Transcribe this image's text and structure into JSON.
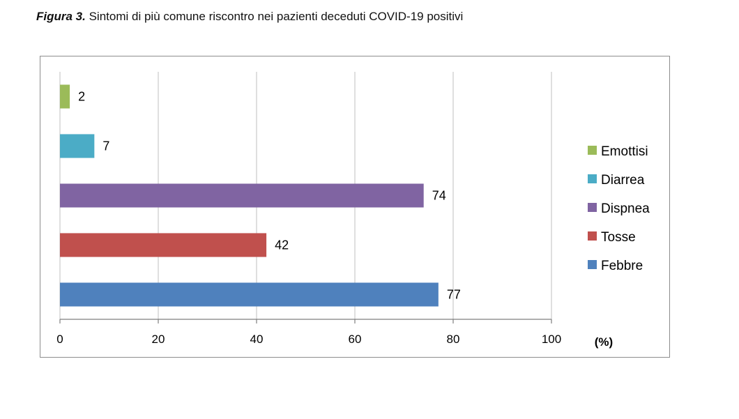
{
  "caption": {
    "label": "Figura 3.",
    "text": "Sintomi di più comune riscontro nei pazienti deceduti COVID-19 positivi"
  },
  "chart_data": {
    "type": "bar",
    "orientation": "horizontal",
    "title": "Sintomi di più comune riscontro nei pazienti deceduti COVID-19 positivi",
    "xlabel": "(%)",
    "ylabel": "",
    "xlim": [
      0,
      100
    ],
    "xticks": [
      0,
      20,
      40,
      60,
      80,
      100
    ],
    "grid": "vertical",
    "legend_position": "right",
    "categories": [
      "Febbre",
      "Tosse",
      "Dispnea",
      "Diarrea",
      "Emottisi"
    ],
    "values": [
      77,
      42,
      74,
      7,
      2
    ],
    "colors": [
      "#4f81bd",
      "#c0504d",
      "#8064a2",
      "#4bacc6",
      "#9bbb59"
    ],
    "legend_order": [
      "Emottisi",
      "Diarrea",
      "Dispnea",
      "Tosse",
      "Febbre"
    ]
  }
}
